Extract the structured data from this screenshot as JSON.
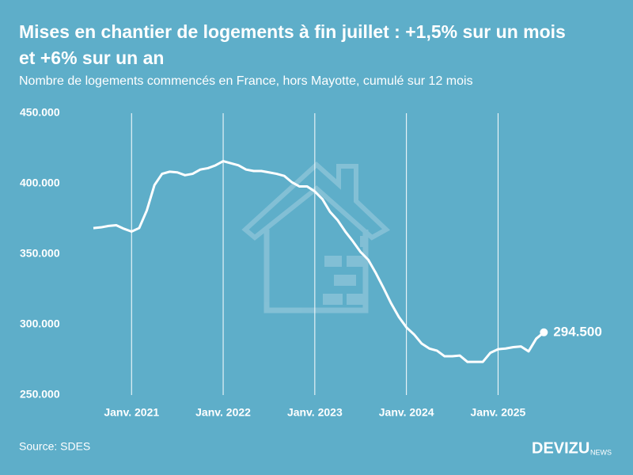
{
  "chart_data": {
    "type": "line",
    "title": [
      "Mises en chantier de logements à fin juillet : +1,5% sur un mois",
      "et +6% sur un an"
    ],
    "subtitle": "Nombre de logements commencés en France, hors Mayotte, cumulé sur 12 mois",
    "source": "Source: SDES",
    "brand": "DEVIZU",
    "brand_suffix": "NEWS",
    "categories": [
      null,
      null,
      null,
      null,
      null,
      "Janv. 2021",
      null,
      null,
      null,
      null,
      null,
      null,
      null,
      null,
      null,
      null,
      null,
      "Janv. 2022",
      null,
      null,
      null,
      null,
      null,
      null,
      null,
      null,
      null,
      null,
      null,
      "Janv. 2023",
      null,
      null,
      null,
      null,
      null,
      null,
      null,
      null,
      null,
      null,
      null,
      "Janv. 2024",
      null,
      null,
      null,
      null,
      null,
      null,
      null,
      null,
      null,
      null,
      null,
      "Janv. 2025",
      null,
      null,
      null,
      null,
      null,
      null
    ],
    "values": [
      368500,
      369000,
      370000,
      370500,
      368000,
      366000,
      368500,
      381000,
      399000,
      407000,
      408500,
      408000,
      406000,
      407000,
      410000,
      411000,
      413000,
      416000,
      414500,
      413000,
      410000,
      409000,
      409000,
      408000,
      407000,
      405500,
      401000,
      398000,
      398000,
      394500,
      389000,
      380000,
      374000,
      366000,
      359000,
      351500,
      346000,
      336500,
      326000,
      315000,
      305500,
      298000,
      293000,
      286500,
      283000,
      281500,
      277500,
      277500,
      278000,
      273500,
      273500,
      273500,
      280000,
      282500,
      283000,
      284000,
      284500,
      281000,
      290000,
      294500
    ],
    "value_labels": [
      null,
      null,
      null,
      null,
      null,
      null,
      null,
      null,
      null,
      null,
      null,
      null,
      null,
      null,
      null,
      null,
      null,
      null,
      null,
      null,
      null,
      null,
      null,
      null,
      null,
      null,
      null,
      null,
      null,
      null,
      null,
      null,
      null,
      null,
      null,
      null,
      null,
      null,
      null,
      null,
      null,
      null,
      null,
      null,
      null,
      null,
      null,
      null,
      null,
      null,
      null,
      null,
      null,
      null,
      null,
      null,
      null,
      null,
      null,
      "294.500"
    ],
    "color": "#ffffff",
    "ylim": [
      250000,
      450000
    ],
    "yticks": [
      {
        "value": 250000,
        "label": "250.000"
      },
      {
        "value": 300000,
        "label": "300.000"
      },
      {
        "value": 350000,
        "label": "350.000"
      },
      {
        "value": 400000,
        "label": "400.000"
      },
      {
        "value": 450000,
        "label": "450.000"
      }
    ],
    "grid": "x"
  }
}
